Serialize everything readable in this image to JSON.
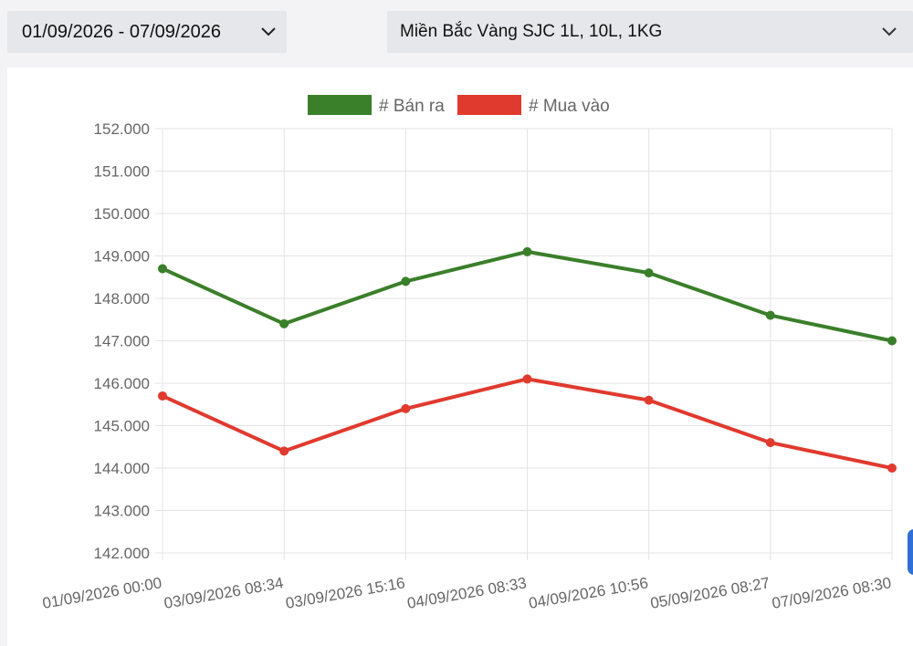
{
  "filters": {
    "date_range": "01/09/2026 - 07/09/2026",
    "product": "Miền Bắc Vàng SJC 1L, 10L, 1KG",
    "dropdown_icon": "chevron-down-icon"
  },
  "chart_data": {
    "type": "line",
    "title": "",
    "xlabel": "",
    "ylabel": "",
    "categories": [
      "01/09/2026 00:00",
      "03/09/2026 08:34",
      "03/09/2026 15:16",
      "04/09/2026 08:33",
      "04/09/2026 10:56",
      "05/09/2026 08:27",
      "07/09/2026 08:30"
    ],
    "series": [
      {
        "name": "# Bán ra",
        "color": "#3a7f2a",
        "values": [
          148.7,
          147.4,
          148.4,
          149.1,
          148.6,
          147.6,
          147.0
        ]
      },
      {
        "name": "# Mua vào",
        "color": "#e03a2e",
        "values": [
          145.7,
          144.4,
          145.4,
          146.1,
          145.6,
          144.6,
          144.0
        ]
      }
    ],
    "ylim": [
      142,
      152
    ],
    "yticks": [
      "142.000",
      "143.000",
      "144.000",
      "145.000",
      "146.000",
      "147.000",
      "148.000",
      "149.000",
      "150.000",
      "151.000",
      "152.000"
    ],
    "grid": true,
    "legend_position": "top-center"
  }
}
